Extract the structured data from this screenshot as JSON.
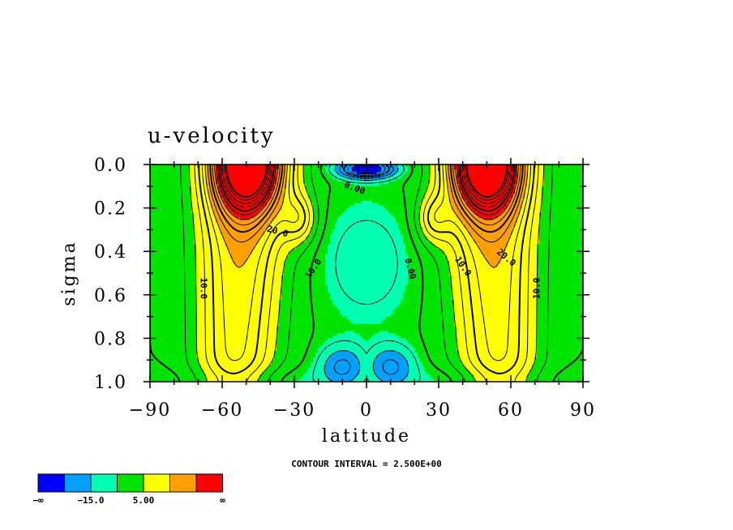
{
  "chart_data": {
    "type": "contour",
    "title": "u-velocity",
    "xlabel": "latitude",
    "ylabel": "sigma",
    "xlim": [
      -90,
      90
    ],
    "ylim": [
      1.0,
      0.0
    ],
    "x_ticks": [
      -90,
      -60,
      -30,
      0,
      30,
      60,
      90
    ],
    "x_tick_labels": [
      "−90",
      "−60",
      "−30",
      "0",
      "30",
      "60",
      "90"
    ],
    "y_ticks": [
      0.0,
      0.2,
      0.4,
      0.6,
      0.8,
      1.0
    ],
    "y_tick_labels": [
      "0.0",
      "0.2",
      "0.4",
      "0.6",
      "0.8",
      "1.0"
    ],
    "contour_interval_text": "CONTOUR INTERVAL = 2.500E+00",
    "contour_labels": [
      {
        "text": "0.00",
        "lat": -5,
        "sigma": 0.11,
        "rot": 20
      },
      {
        "text": "20.0",
        "lat": -37,
        "sigma": 0.31,
        "rot": 15
      },
      {
        "text": "10.0",
        "lat": -22,
        "sigma": 0.48,
        "rot": -55
      },
      {
        "text": "10.0",
        "lat": -68,
        "sigma": 0.57,
        "rot": 90
      },
      {
        "text": "0.00",
        "lat": 18,
        "sigma": 0.48,
        "rot": 75
      },
      {
        "text": "10.0",
        "lat": 40,
        "sigma": 0.47,
        "rot": 55
      },
      {
        "text": "20.0",
        "lat": 58,
        "sigma": 0.43,
        "rot": 40
      },
      {
        "text": "10.0",
        "lat": 71,
        "sigma": 0.57,
        "rot": -90
      }
    ],
    "jets": [
      {
        "lat": -50,
        "sigma": 0.0,
        "max_speed": 40
      },
      {
        "lat": 50,
        "sigma": 0.0,
        "max_speed": 40
      }
    ],
    "colorbar": {
      "colors": [
        "#0000ff",
        "#00a0ff",
        "#00ffb0",
        "#00e400",
        "#ffff00",
        "#ffa000",
        "#ff0000"
      ],
      "labels": [
        "−∞",
        "−15.0",
        "5.00",
        "∞"
      ]
    }
  }
}
